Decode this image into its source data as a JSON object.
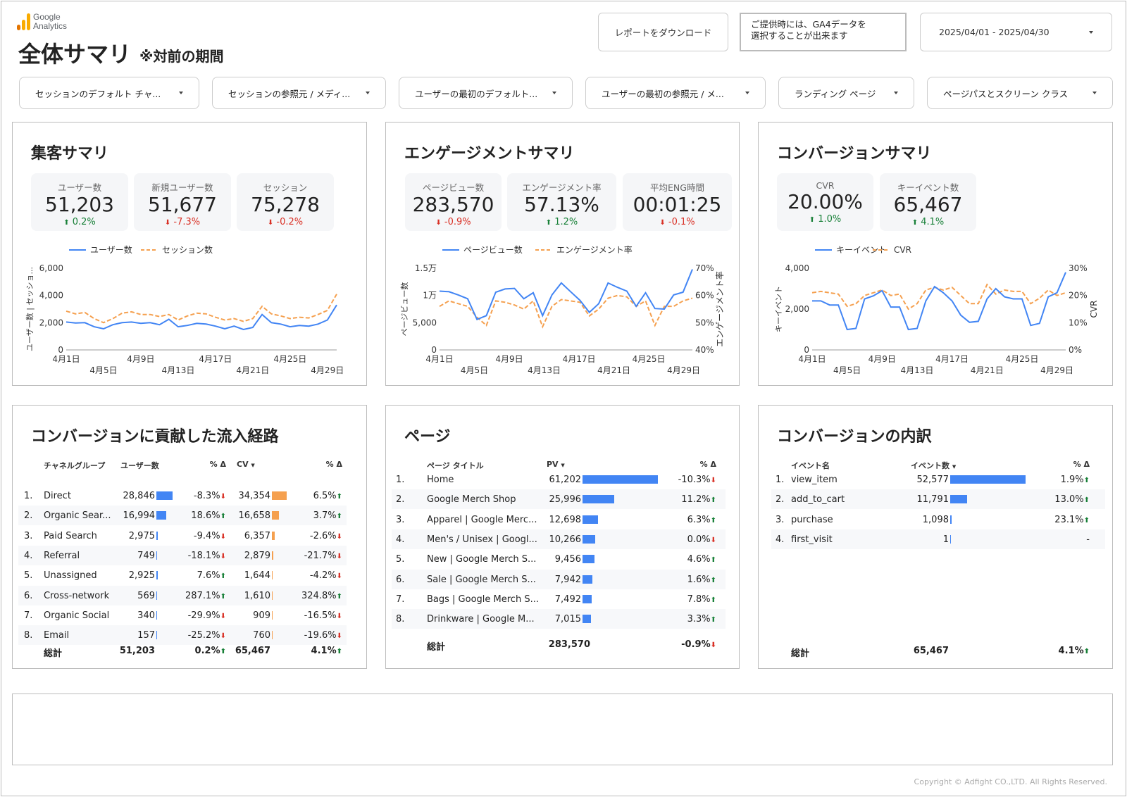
{
  "header": {
    "logo_line1": "Google",
    "logo_line2": "Analytics",
    "title": "全体サマリ",
    "subtitle": "※対前の期間",
    "download_label": "レポートをダウンロード",
    "note_line1": "ご提供時には、GA4データを",
    "note_line2": "選択することが出来ます",
    "date_range": "2025/04/01 - 2025/04/30"
  },
  "filters": [
    "セッションのデフォルト チャ...",
    "セッションの参照元 / メディ...",
    "ユーザーの最初のデフォルト...",
    "ユーザーの最初の参照元 / メ...",
    "ランディング ページ",
    "ページパスとスクリーン クラス"
  ],
  "acquisition": {
    "title": "集客サマリ",
    "kpis": [
      {
        "label": "ユーザー数",
        "value": "51,203",
        "delta": "0.2%",
        "dir": "up"
      },
      {
        "label": "新規ユーザー数",
        "value": "51,677",
        "delta": "-7.3%",
        "dir": "down"
      },
      {
        "label": "セッション",
        "value": "75,278",
        "delta": "-0.2%",
        "dir": "down"
      }
    ]
  },
  "engagement": {
    "title": "エンゲージメントサマリ",
    "kpis": [
      {
        "label": "ページビュー数",
        "value": "283,570",
        "delta": "-0.9%",
        "dir": "down"
      },
      {
        "label": "エンゲージメント率",
        "value": "57.13%",
        "delta": "1.2%",
        "dir": "up"
      },
      {
        "label": "平均ENG時間",
        "value": "00:01:25",
        "delta": "-0.1%",
        "dir": "down"
      }
    ]
  },
  "conversion": {
    "title": "コンバージョンサマリ",
    "kpis": [
      {
        "label": "CVR",
        "value": "20.00%",
        "delta": "1.0%",
        "dir": "up"
      },
      {
        "label": "キーイベント数",
        "value": "65,467",
        "delta": "4.1%",
        "dir": "up"
      }
    ]
  },
  "colors": {
    "blue": "#4285f4",
    "orange": "#f5a04f",
    "up": "#188038",
    "down": "#d93025"
  },
  "chart_data": [
    {
      "type": "line",
      "x_ticks_top": [
        "4月1日",
        "4月9日",
        "4月17日",
        "4月25日"
      ],
      "x_ticks_bottom": [
        "4月5日",
        "4月13日",
        "4月21日",
        "4月29日"
      ],
      "ylabel": "ユーザー数 | セッショ...",
      "y_ticks": [
        "6,000",
        "4,000",
        "2,000",
        "0"
      ],
      "ylim": [
        0,
        6000
      ],
      "series": [
        {
          "name": "ユーザー数",
          "values": [
            2050,
            1980,
            2000,
            1700,
            1550,
            1850,
            2000,
            2050,
            1950,
            2000,
            1850,
            2250,
            1700,
            1800,
            1950,
            1900,
            1750,
            1550,
            1750,
            1500,
            1650,
            2600,
            2000,
            1900,
            1700,
            1800,
            1750,
            1900,
            2200,
            3300
          ]
        },
        {
          "name": "セッション数",
          "values": [
            2850,
            2650,
            2750,
            2300,
            2000,
            2300,
            2700,
            2800,
            2600,
            2600,
            2450,
            2600,
            2200,
            2500,
            2700,
            2650,
            2400,
            2200,
            2300,
            2100,
            2300,
            3200,
            2650,
            2500,
            2300,
            2400,
            2350,
            2600,
            2900,
            4100
          ]
        }
      ]
    },
    {
      "type": "line",
      "x_ticks_top": [
        "4月1日",
        "4月9日",
        "4月17日",
        "4月25日"
      ],
      "x_ticks_bottom": [
        "4月5日",
        "4月13日",
        "4月21日",
        "4月29日"
      ],
      "ylabel": "ページビュー数",
      "y2label": "エンゲージメント率",
      "y_ticks": [
        "1.5万",
        "1万",
        "5,000",
        "0"
      ],
      "y2_ticks": [
        "70%",
        "60%",
        "50%",
        "40%"
      ],
      "ylim": [
        0,
        15000
      ],
      "y2lim": [
        40,
        70
      ],
      "series": [
        {
          "name": "ページビュー数",
          "values": [
            10800,
            10700,
            10100,
            9400,
            5600,
            6300,
            10600,
            11200,
            11300,
            9400,
            10500,
            6300,
            10100,
            12300,
            10700,
            9100,
            6900,
            8500,
            12300,
            11500,
            10800,
            8000,
            10500,
            7600,
            7500,
            10100,
            10600,
            14800
          ]
        },
        {
          "name": "エンゲージメント率",
          "values": [
            56,
            58,
            57,
            56,
            52,
            49,
            58,
            57.5,
            56.5,
            55,
            58,
            48.5,
            56,
            58.5,
            58,
            57.5,
            52.5,
            55,
            59,
            60,
            59.5,
            56,
            58,
            49,
            56,
            56,
            58,
            59
          ]
        }
      ]
    },
    {
      "type": "line",
      "x_ticks_top": [
        "4月1日",
        "4月9日",
        "4月17日",
        "4月25日"
      ],
      "x_ticks_bottom": [
        "4月5日",
        "4月13日",
        "4月21日",
        "4月29日"
      ],
      "ylabel": "キーイベント",
      "y2label": "CVR",
      "y_ticks": [
        "4,000",
        "2,000",
        "0"
      ],
      "y2_ticks": [
        "30%",
        "20%",
        "10%",
        "0%"
      ],
      "ylim": [
        0,
        4000
      ],
      "y2lim": [
        0,
        30
      ],
      "series": [
        {
          "name": "キーイベント",
          "values": [
            2400,
            2400,
            2200,
            2200,
            1000,
            1050,
            2500,
            2650,
            2900,
            2100,
            2100,
            1000,
            1050,
            2400,
            3100,
            2800,
            2400,
            1700,
            1350,
            1400,
            2500,
            3000,
            2600,
            2500,
            2500,
            1200,
            1300,
            2600,
            2800,
            3800
          ]
        },
        {
          "name": "CVR",
          "values": [
            21,
            21.5,
            21,
            20.5,
            16,
            17,
            20,
            21,
            22,
            20,
            20.5,
            15,
            17,
            22,
            23,
            22,
            23,
            20,
            17,
            17,
            24,
            20.5,
            22,
            21.5,
            21.5,
            17,
            19,
            22,
            20,
            21
          ]
        }
      ]
    }
  ],
  "channels": {
    "title": "コンバージョンに貢献した流入経路",
    "headers": [
      "チャネルグループ",
      "ユーザー数",
      "% Δ",
      "CV",
      "% Δ"
    ],
    "rows": [
      {
        "rank": "1.",
        "name": "Direct",
        "users": "28,846",
        "users_num": 28846,
        "ud": "-8.3%",
        "ud_dir": "down",
        "cv": "34,354",
        "cv_num": 34354,
        "cd": "6.5%",
        "cd_dir": "up"
      },
      {
        "rank": "2.",
        "name": "Organic Sear...",
        "users": "16,994",
        "users_num": 16994,
        "ud": "18.6%",
        "ud_dir": "up",
        "cv": "16,658",
        "cv_num": 16658,
        "cd": "3.7%",
        "cd_dir": "up"
      },
      {
        "rank": "3.",
        "name": "Paid Search",
        "users": "2,975",
        "users_num": 2975,
        "ud": "-9.4%",
        "ud_dir": "down",
        "cv": "6,357",
        "cv_num": 6357,
        "cd": "-2.6%",
        "cd_dir": "down"
      },
      {
        "rank": "4.",
        "name": "Referral",
        "users": "749",
        "users_num": 749,
        "ud": "-18.1%",
        "ud_dir": "down",
        "cv": "2,879",
        "cv_num": 2879,
        "cd": "-21.7%",
        "cd_dir": "down"
      },
      {
        "rank": "5.",
        "name": "Unassigned",
        "users": "2,925",
        "users_num": 2925,
        "ud": "7.6%",
        "ud_dir": "up",
        "cv": "1,644",
        "cv_num": 1644,
        "cd": "-4.2%",
        "cd_dir": "down"
      },
      {
        "rank": "6.",
        "name": "Cross-network",
        "users": "569",
        "users_num": 569,
        "ud": "287.1%",
        "ud_dir": "up",
        "cv": "1,610",
        "cv_num": 1610,
        "cd": "324.8%",
        "cd_dir": "up"
      },
      {
        "rank": "7.",
        "name": "Organic Social",
        "users": "340",
        "users_num": 340,
        "ud": "-29.9%",
        "ud_dir": "down",
        "cv": "909",
        "cv_num": 909,
        "cd": "-16.5%",
        "cd_dir": "down"
      },
      {
        "rank": "8.",
        "name": "Email",
        "users": "157",
        "users_num": 157,
        "ud": "-25.2%",
        "ud_dir": "down",
        "cv": "760",
        "cv_num": 760,
        "cd": "-19.6%",
        "cd_dir": "down"
      }
    ],
    "total": {
      "label": "総計",
      "users": "51,203",
      "ud": "0.2%",
      "cv": "65,467",
      "cd": "4.1%"
    }
  },
  "pages": {
    "title": "ページ",
    "headers": [
      "ページ タイトル",
      "PV",
      "% Δ"
    ],
    "rows": [
      {
        "rank": "1.",
        "name": "Home",
        "pv": "61,202",
        "pv_num": 61202,
        "d": "-10.3%",
        "dir": "down"
      },
      {
        "rank": "2.",
        "name": "Google Merch Shop",
        "pv": "25,996",
        "pv_num": 25996,
        "d": "11.2%",
        "dir": "up"
      },
      {
        "rank": "3.",
        "name": "Apparel | Google Merc...",
        "pv": "12,698",
        "pv_num": 12698,
        "d": "6.3%",
        "dir": "up"
      },
      {
        "rank": "4.",
        "name": "Men's / Unisex | Googl...",
        "pv": "10,266",
        "pv_num": 10266,
        "d": "0.0%",
        "dir": "down"
      },
      {
        "rank": "5.",
        "name": "New | Google Merch S...",
        "pv": "9,456",
        "pv_num": 9456,
        "d": "4.6%",
        "dir": "up"
      },
      {
        "rank": "6.",
        "name": "Sale | Google Merch S...",
        "pv": "7,942",
        "pv_num": 7942,
        "d": "1.6%",
        "dir": "up"
      },
      {
        "rank": "7.",
        "name": "Bags | Google Merch S...",
        "pv": "7,492",
        "pv_num": 7492,
        "d": "7.8%",
        "dir": "up"
      },
      {
        "rank": "8.",
        "name": "Drinkware | Google M...",
        "pv": "7,015",
        "pv_num": 7015,
        "d": "3.3%",
        "dir": "up"
      }
    ],
    "total": {
      "label": "総計",
      "pv": "283,570",
      "d": "-0.9%"
    }
  },
  "events": {
    "title": "コンバージョンの内訳",
    "headers": [
      "イベント名",
      "イベント数",
      "% Δ"
    ],
    "rows": [
      {
        "rank": "1.",
        "name": "view_item",
        "count": "52,577",
        "count_num": 52577,
        "d": "1.9%",
        "dir": "up"
      },
      {
        "rank": "2.",
        "name": "add_to_cart",
        "count": "11,791",
        "count_num": 11791,
        "d": "13.0%",
        "dir": "up"
      },
      {
        "rank": "3.",
        "name": "purchase",
        "count": "1,098",
        "count_num": 1098,
        "d": "23.1%",
        "dir": "up"
      },
      {
        "rank": "4.",
        "name": "first_visit",
        "count": "1",
        "count_num": 1,
        "d": "-",
        "dir": "none"
      }
    ],
    "total": {
      "label": "総計",
      "count": "65,467",
      "d": "4.1%"
    }
  },
  "footer": {
    "copyright": "Copyright © Adfight CO.,LTD. All Rights Reserved."
  }
}
